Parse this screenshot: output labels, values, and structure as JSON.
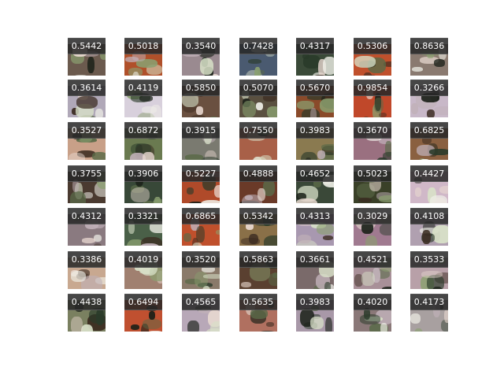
{
  "scores": [
    [
      "0.5442",
      "0.5018",
      "0.3540",
      "0.7428",
      "0.4317",
      "0.5306",
      "0.8636"
    ],
    [
      "0.3614",
      "0.4119",
      "0.5850",
      "0.5070",
      "0.5670",
      "0.9854",
      "0.3266"
    ],
    [
      "0.3527",
      "0.6872",
      "0.3915",
      "0.7550",
      "0.3983",
      "0.3670",
      "0.6825"
    ],
    [
      "0.3755",
      "0.3906",
      "0.5227",
      "0.4888",
      "0.4652",
      "0.5023",
      "0.4427"
    ],
    [
      "0.4312",
      "0.3321",
      "0.6865",
      "0.5342",
      "0.4313",
      "0.3029",
      "0.4108"
    ],
    [
      "0.3386",
      "0.4019",
      "0.3520",
      "0.5863",
      "0.3661",
      "0.4521",
      "0.3533"
    ],
    [
      "0.4438",
      "0.6494",
      "0.4565",
      "0.5635",
      "0.3983",
      "0.4020",
      "0.4173"
    ]
  ],
  "tile_colors": [
    [
      "#6b5a4e",
      "#b0502a",
      "#9a8a90",
      "#4a5a70",
      "#3a4a38",
      "#c0502c",
      "#8a7a70"
    ],
    [
      "#b0a8b8",
      "#d8d0dc",
      "#6a5040",
      "#5a5040",
      "#8a4a2a",
      "#c0482a",
      "#c8b8c8"
    ],
    [
      "#c8a088",
      "#6a7a50",
      "#7a7a70",
      "#a86048",
      "#8a7a50",
      "#9a7080",
      "#8a6040"
    ],
    [
      "#4a3a30",
      "#384838",
      "#b04a2a",
      "#6a3a28",
      "#3a4838",
      "#3a4028",
      "#d0b8c8"
    ],
    [
      "#8a7a80",
      "#4a6048",
      "#c0502c",
      "#8a7048",
      "#a898b0",
      "#a07a90",
      "#b0a0b0"
    ],
    [
      "#c8a890",
      "#a08070",
      "#8a7a6a",
      "#5a4030",
      "#7a6a6a",
      "#a89098",
      "#b8a0a8"
    ],
    [
      "#7a8060",
      "#c05030",
      "#b8a8b8",
      "#b07060",
      "#a898a8",
      "#8a7878",
      "#a8a0a0"
    ]
  ]
}
